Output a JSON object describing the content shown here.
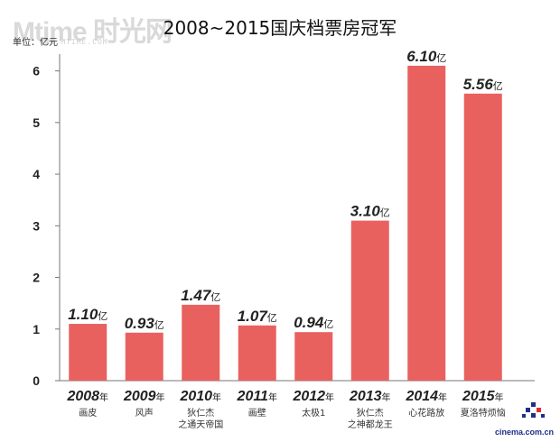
{
  "chart_data": {
    "type": "bar",
    "title": "2008~2015国庆档票房冠军",
    "unit_label": "单位：亿元",
    "ylim": [
      0,
      6.5
    ],
    "yticks": [
      "0",
      "1",
      "2",
      "3",
      "4",
      "5",
      "6"
    ],
    "categories": [
      {
        "year": "2008",
        "suffix": "年",
        "film": [
          "画皮"
        ]
      },
      {
        "year": "2009",
        "suffix": "年",
        "film": [
          "风声"
        ]
      },
      {
        "year": "2010",
        "suffix": "年",
        "film": [
          "狄仁杰",
          "之通天帝国"
        ]
      },
      {
        "year": "2011",
        "suffix": "年",
        "film": [
          "画壁"
        ]
      },
      {
        "year": "2012",
        "suffix": "年",
        "film": [
          "太极1"
        ]
      },
      {
        "year": "2013",
        "suffix": "年",
        "film": [
          "狄仁杰",
          "之神都龙王"
        ]
      },
      {
        "year": "2014",
        "suffix": "年",
        "film": [
          "心花路放"
        ]
      },
      {
        "year": "2015",
        "suffix": "年",
        "film": [
          "夏洛特烦恼"
        ]
      }
    ],
    "values": [
      1.1,
      0.93,
      1.47,
      1.07,
      0.94,
      3.1,
      6.1,
      5.56
    ],
    "value_labels": [
      "1.10",
      "0.93",
      "1.47",
      "1.07",
      "0.94",
      "3.10",
      "6.10",
      "5.56"
    ],
    "value_unit": "亿",
    "bar_color": "#e8615f",
    "grid": false
  },
  "watermark": {
    "logo": "Mtime 时光网",
    "url": "WWW.MTIME.COM"
  },
  "source": "cinema.com.cn"
}
